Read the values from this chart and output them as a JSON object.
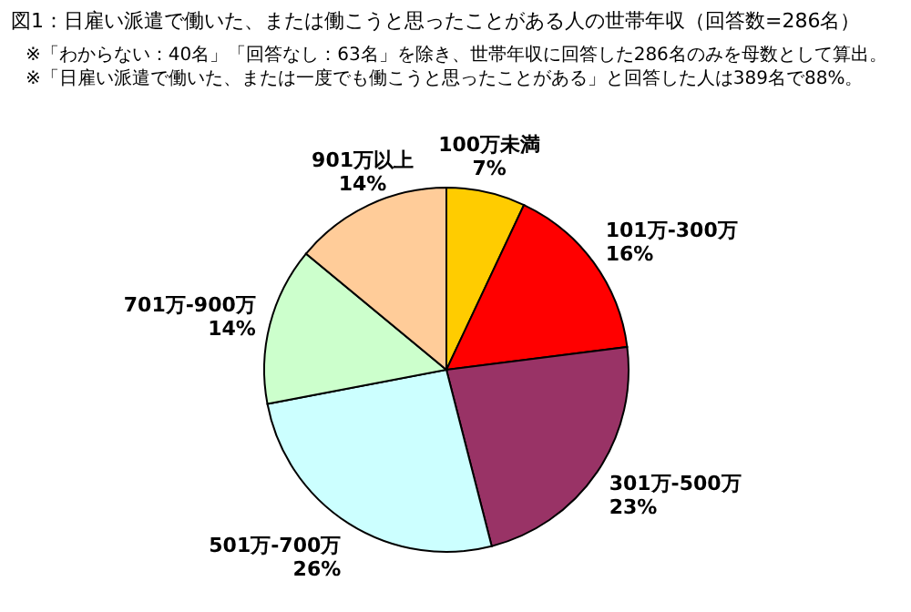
{
  "chart_data": {
    "type": "pie",
    "title": "図1：日雇い派遣で働いた、または働こうと思ったことがある人の世帯年収（回答数=286名）",
    "annotations": [
      "※「わからない：40名」「回答なし：63名」を除き、世帯年収に回答した286名のみを母数として算出。",
      "※「日雇い派遣で働いた、または一度でも働こうと思ったことがある」と回答した人は389名で88%。"
    ],
    "categories": [
      "100万未満",
      "101万-300万",
      "301万-500万",
      "501万-700万",
      "701万-900万",
      "901万以上"
    ],
    "values": [
      7,
      16,
      23,
      26,
      14,
      14
    ],
    "colors": [
      "#ffcc00",
      "#ff0000",
      "#993366",
      "#ccffff",
      "#ccffcc",
      "#ffcc99"
    ],
    "value_labels": [
      "7%",
      "16%",
      "23%",
      "26%",
      "14%",
      "14%"
    ]
  }
}
